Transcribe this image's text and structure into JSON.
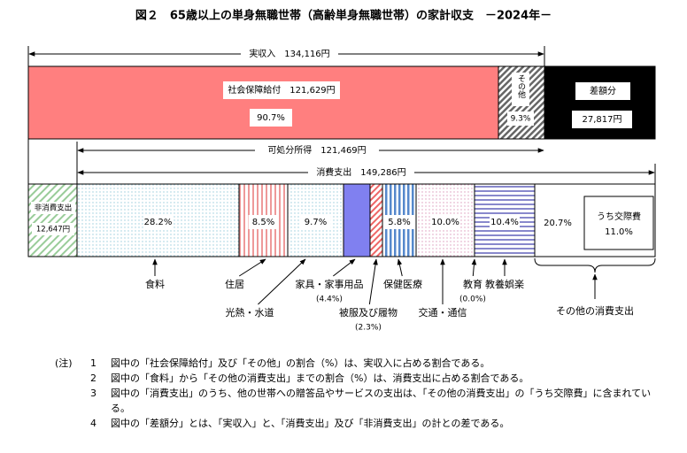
{
  "title": "図２　65歳以上の単身無職世帯（高齢単身無職世帯）の家計収支　－2024年－",
  "income": {
    "label": "実収入　134,116円",
    "social_security": {
      "label": "社会保障給付　121,629円",
      "share": "90.7%"
    },
    "other": {
      "label": "その他",
      "share": "9.3%"
    },
    "deficit": {
      "label": "差額分",
      "amount": "27,817円"
    }
  },
  "disposable_income": "可処分所得　121,469円",
  "consumption": "消費支出　149,286円",
  "non_consumption": {
    "label": "非消費支出",
    "amount": "12,647円"
  },
  "segments": [
    {
      "label": "食料",
      "share": "28.2%"
    },
    {
      "label": "住居",
      "share": "8.5%"
    },
    {
      "label": "光熱・水道",
      "share": "9.7%"
    },
    {
      "label": "家具・家事用品",
      "share": "(4.4%)"
    },
    {
      "label": "被服及び履物",
      "share": "(2.3%)"
    },
    {
      "label": "保健医療",
      "share": "5.8%"
    },
    {
      "label": "交通・通信",
      "share": "10.0%"
    },
    {
      "label": "教育",
      "share": "(0.0%)"
    },
    {
      "label": "教養娯楽",
      "share": "10.4%"
    }
  ],
  "other_consumption": {
    "label": "その他の消費支出",
    "share": "20.7%",
    "sub_label": "うち交際費",
    "sub_share": "11.0%"
  },
  "notes": {
    "marker": "(注)",
    "items": [
      {
        "number": "1",
        "text": "図中の「社会保障給付」及び「その他」の割合（%）は、実収入に占める割合である。"
      },
      {
        "number": "2",
        "text": "図中の「食料」から「その他の消費支出」までの割合（%）は、消費支出に占める割合である。"
      },
      {
        "number": "3",
        "text": "図中の「消費支出」のうち、他の世帯への贈答品やサービスの支出は、「その他の消費支出」の「うち交際費」に含まれている。"
      },
      {
        "number": "4",
        "text": "図中の「差額分」とは、「実収入」と、「消費支出」及び「非消費支出」の計との差である。"
      }
    ]
  }
}
